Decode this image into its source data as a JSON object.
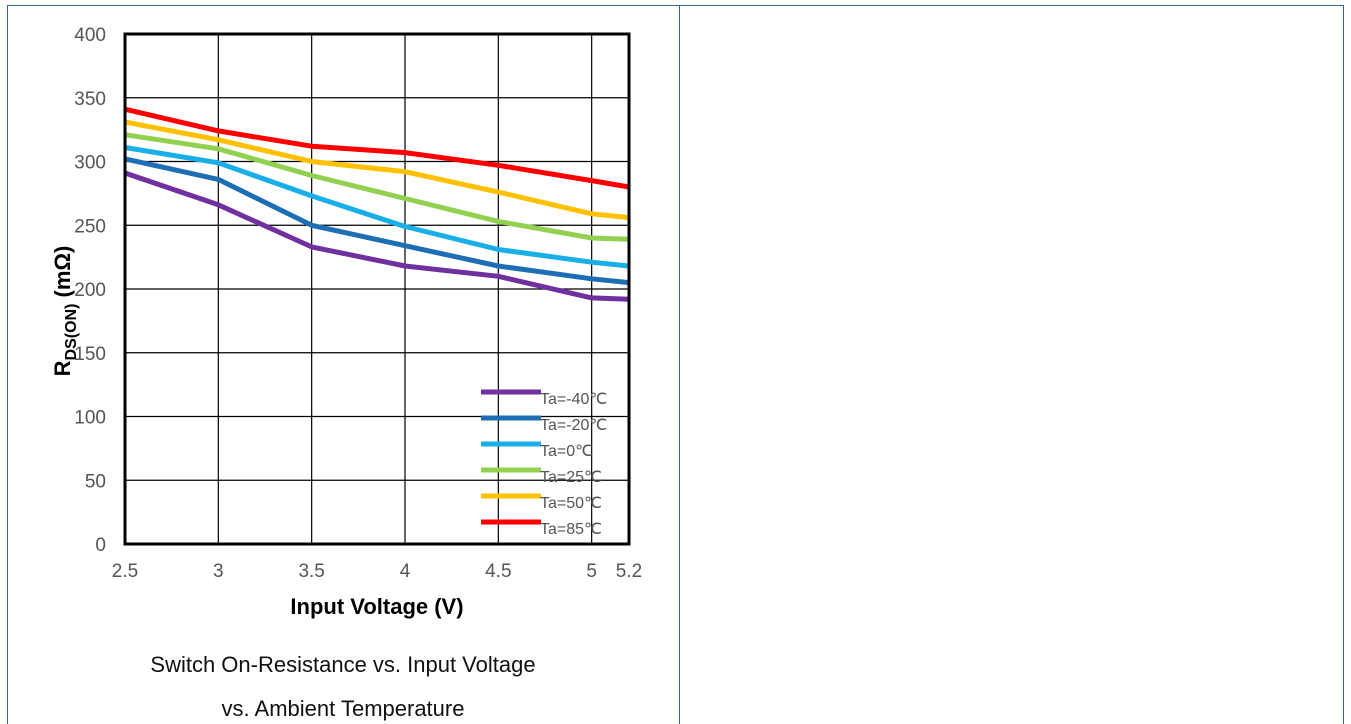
{
  "caption": {
    "line1": "Switch On-Resistance vs. Input Voltage",
    "line2": "vs. Ambient Temperature"
  },
  "chart_data": {
    "type": "line",
    "title": "",
    "xlabel": "Input Voltage (V)",
    "ylabel": {
      "main": "R",
      "sub": "DS(ON)",
      "unit": " (mΩ)"
    },
    "xlim": [
      2.5,
      5.2
    ],
    "ylim": [
      0,
      400
    ],
    "x_ticks": [
      "2.5",
      "3",
      "3.5",
      "4",
      "4.5",
      "5",
      "5.2"
    ],
    "y_ticks": [
      "0",
      "50",
      "100",
      "150",
      "200",
      "250",
      "300",
      "350",
      "400"
    ],
    "grid": true,
    "legend_position": "bottom-right",
    "x": [
      2.5,
      3,
      3.5,
      4,
      4.5,
      5,
      5.2
    ],
    "series": [
      {
        "name": "Ta=-40℃",
        "color": "#7030a0",
        "values": [
          291,
          266,
          233,
          218,
          210,
          193,
          192
        ]
      },
      {
        "name": "Ta=-20℃",
        "color": "#1e6eb5",
        "values": [
          302,
          286,
          250,
          234,
          218,
          208,
          205
        ]
      },
      {
        "name": "Ta=0℃",
        "color": "#18aee8",
        "values": [
          311,
          299,
          273,
          249,
          231,
          221,
          218
        ]
      },
      {
        "name": "Ta=25℃",
        "color": "#92d050",
        "values": [
          321,
          310,
          289,
          271,
          253,
          240,
          239
        ]
      },
      {
        "name": "Ta=50℃",
        "color": "#ffc000",
        "values": [
          331,
          317,
          300,
          292,
          276,
          259,
          256
        ]
      },
      {
        "name": "Ta=85℃",
        "color": "#ff0000",
        "values": [
          341,
          324,
          312,
          307,
          297,
          285,
          280
        ]
      }
    ]
  }
}
